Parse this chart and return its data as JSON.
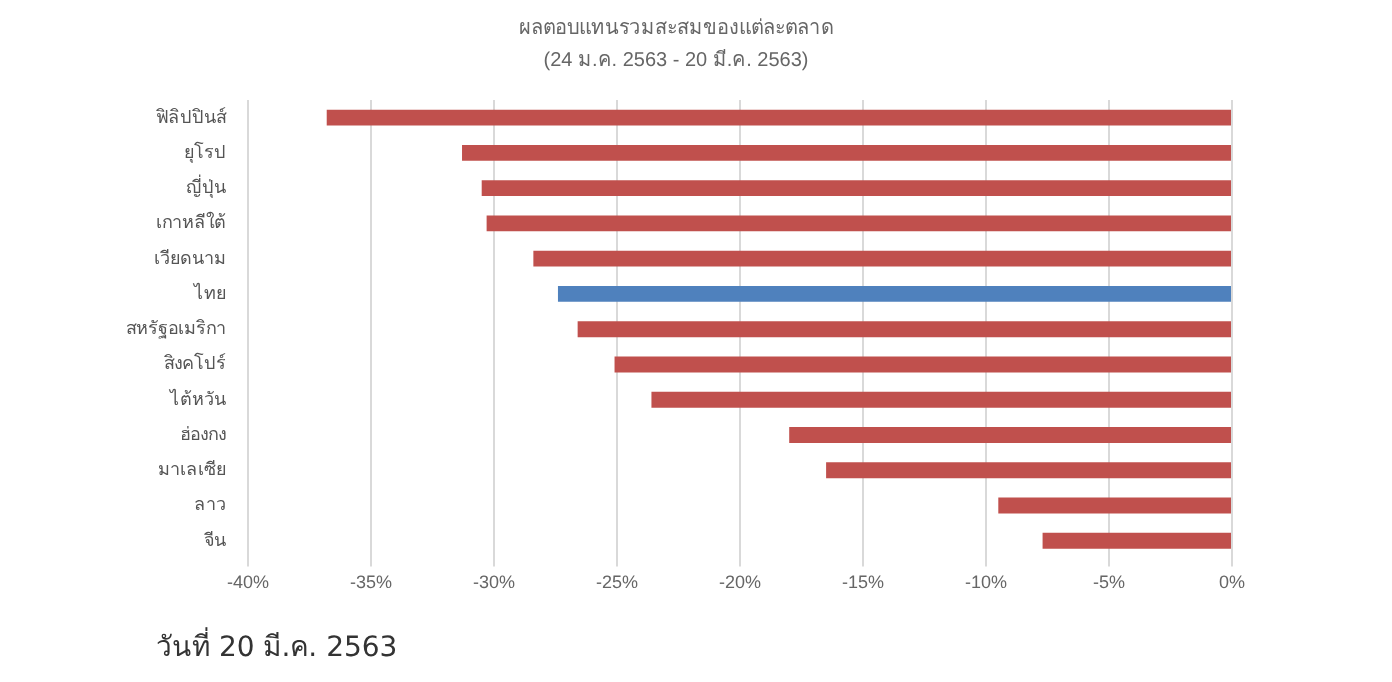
{
  "chart_data": {
    "type": "bar",
    "orientation": "horizontal",
    "title": "ผลตอบแทนรวมสะสมของแต่ละตลาด",
    "subtitle": "(24 ม.ค. 2563 - 20 มี.ค. 2563)",
    "categories": [
      "ฟิลิปปินส์",
      "ยุโรป",
      "ญี่ปุ่น",
      "เกาหลีใต้",
      "เวียดนาม",
      "ไทย",
      "สหรัฐอเมริกา",
      "สิงคโปร์",
      "ไต้หวัน",
      "ฮ่องกง",
      "มาเลเซีย",
      "ลาว",
      "จีน"
    ],
    "values": [
      -36.8,
      -31.3,
      -30.5,
      -30.3,
      -28.4,
      -27.4,
      -26.6,
      -25.1,
      -23.6,
      -18.0,
      -16.5,
      -9.5,
      -7.7
    ],
    "colors": [
      "#c0504d",
      "#c0504d",
      "#c0504d",
      "#c0504d",
      "#c0504d",
      "#4f81bd",
      "#c0504d",
      "#c0504d",
      "#c0504d",
      "#c0504d",
      "#c0504d",
      "#c0504d",
      "#c0504d"
    ],
    "xlim": [
      -40,
      0
    ],
    "xticks": [
      {
        "value": -40,
        "label": "-40%"
      },
      {
        "value": -35,
        "label": "-35%"
      },
      {
        "value": -30,
        "label": "-30%"
      },
      {
        "value": -25,
        "label": "-25%"
      },
      {
        "value": -20,
        "label": "-20%"
      },
      {
        "value": -15,
        "label": "-15%"
      },
      {
        "value": -10,
        "label": "-10%"
      },
      {
        "value": -5,
        "label": "-5%"
      },
      {
        "value": 0,
        "label": "0%"
      }
    ],
    "grid": "x",
    "legend": false,
    "annotations": [
      "วันที่ 20 มี.ค. 2563"
    ]
  }
}
